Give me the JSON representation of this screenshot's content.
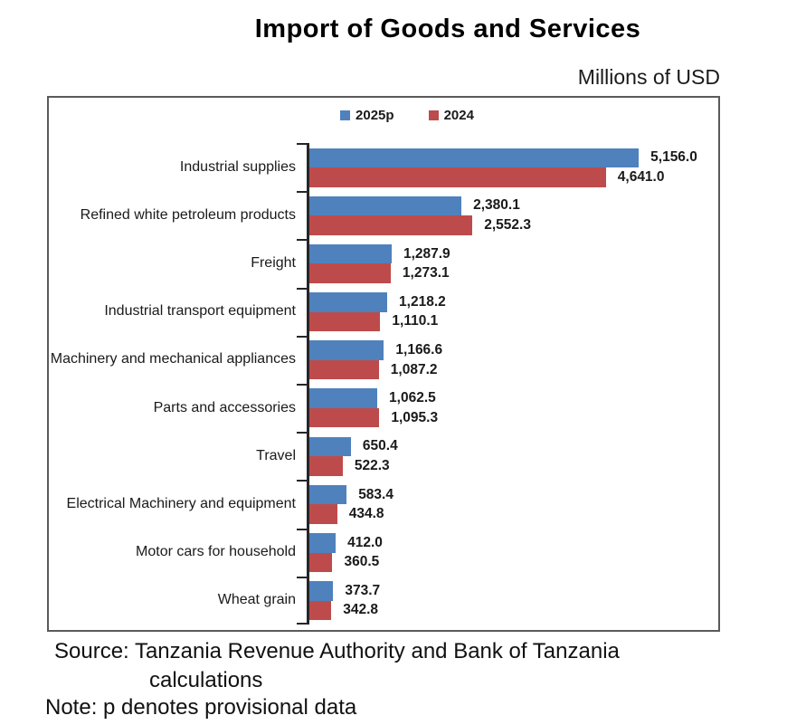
{
  "title": "Import of Goods and Services",
  "subtitle": "Millions of USD",
  "legend": [
    {
      "label": "2025p",
      "color": "#4F81BD"
    },
    {
      "label": "2024",
      "color": "#BE4B4B"
    }
  ],
  "footer": {
    "source_line1": "Source: Tanzania Revenue Authority and Bank of Tanzania",
    "source_line2": "calculations",
    "note": "Note: p denotes provisional data"
  },
  "chart_data": {
    "type": "bar",
    "orientation": "horizontal",
    "title": "Import of Goods and Services",
    "units": "Millions of USD",
    "grid": false,
    "legend_position": "top-center",
    "axis_max": 6400,
    "categories": [
      "Industrial supplies",
      "Refined white petroleum products",
      "Freight",
      "Industrial transport equipment",
      "Machinery and mechanical appliances",
      "Parts and accessories",
      "Travel",
      "Electrical Machinery and equipment",
      "Motor cars for household",
      "Wheat grain"
    ],
    "series": [
      {
        "name": "2025p",
        "color": "#4F81BD",
        "values": [
          5156.0,
          2380.1,
          1287.9,
          1218.2,
          1166.6,
          1062.5,
          650.4,
          583.4,
          412.0,
          373.7
        ]
      },
      {
        "name": "2024",
        "color": "#BE4B4B",
        "values": [
          4641.0,
          2552.3,
          1273.1,
          1110.1,
          1087.2,
          1095.3,
          522.3,
          434.8,
          360.5,
          342.8
        ]
      }
    ]
  }
}
